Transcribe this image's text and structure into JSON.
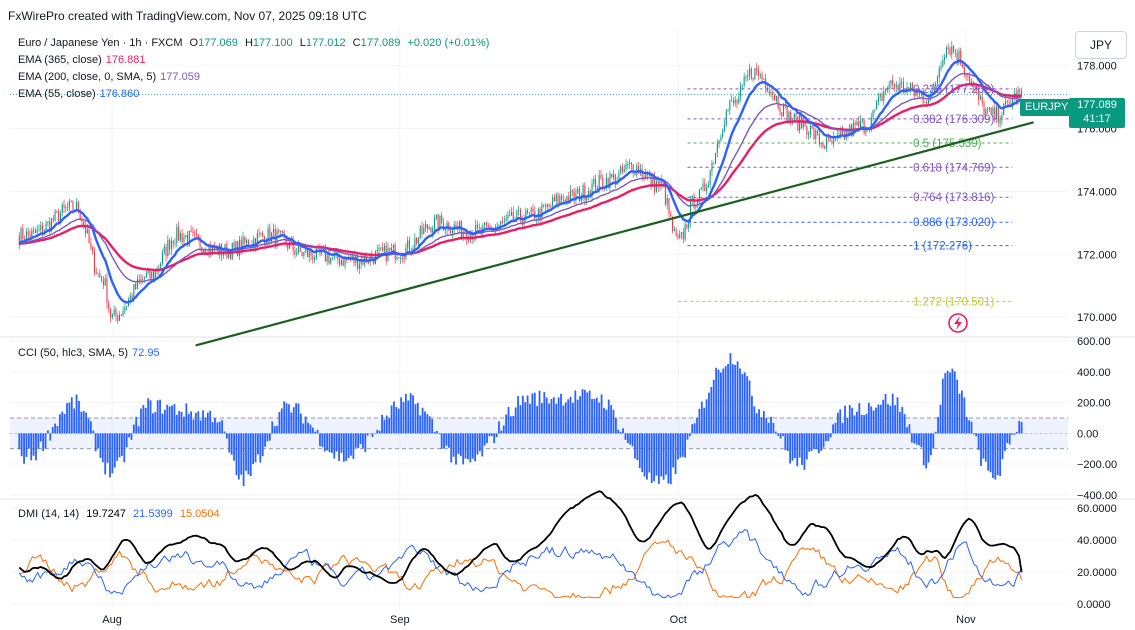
{
  "header": {
    "credit": "FxWirePro created with TradingView.com, Nov 07, 2025 09:18 UTC"
  },
  "currency_button": "JPY",
  "main_legend": {
    "symbol": "Euro / Japanese Yen · 1h · FXCM",
    "o_label": "O",
    "o_value": "177.069",
    "h_label": "H",
    "h_value": "177.100",
    "l_label": "L",
    "l_value": "177.012",
    "c_label": "C",
    "c_value": "177.089",
    "change": "+0.020 (+0.01%)",
    "ema365_label": "EMA (365, close)",
    "ema365_value": "176.881",
    "ema200_label": "EMA (200, close, 0, SMA, 5)",
    "ema200_value": "177.059",
    "ema55_label": "EMA (55, close)",
    "ema55_value": "176.860"
  },
  "price_tag": {
    "ticker": "EURJPY",
    "price": "177.089",
    "countdown": "41:17"
  },
  "cci_legend": {
    "label": "CCI (50, hlc3, SMA, 5)",
    "value": "72.95"
  },
  "dmi_legend": {
    "label": "DMI (14, 14)",
    "adx": "19.7247",
    "plus_di": "21.5399",
    "minus_di": "15.0504"
  },
  "colors": {
    "up": "#089981",
    "down": "#f23645",
    "ema55": "#2962ff",
    "ema200": "#7e57c2",
    "ema365": "#e91e63",
    "cci": "#2962ff",
    "adx": "#000000",
    "plus_di": "#2962ff",
    "minus_di": "#ff6d00",
    "trendline": "#1b5e20",
    "fib": "#7e57c2",
    "fib_mid": "#4caf50",
    "fib_ext": "#c0ca33",
    "fib_base": "#2962ff"
  },
  "chart_data": [
    {
      "type": "candlestick",
      "name": "price",
      "x_labels": [
        "Aug",
        "Sep",
        "Oct",
        "Nov"
      ],
      "ylim": [
        169.4,
        179.2
      ],
      "y_ticks": [
        "178.000",
        "176.000",
        "174.000",
        "172.000",
        "170.000"
      ],
      "y_tick_values": [
        178,
        176,
        174,
        172,
        170
      ],
      "key_points": [
        {
          "t": "Jul 23",
          "close": 172.6
        },
        {
          "t": "Jul 28",
          "close": 173.5
        },
        {
          "t": "Jul 31",
          "close": 171.2
        },
        {
          "t": "Aug 01",
          "close": 170.0
        },
        {
          "t": "Aug 05",
          "close": 171.3
        },
        {
          "t": "Aug 08",
          "close": 172.6
        },
        {
          "t": "Aug 13",
          "close": 172.1
        },
        {
          "t": "Aug 18",
          "close": 172.6
        },
        {
          "t": "Aug 22",
          "close": 172.0
        },
        {
          "t": "Aug 27",
          "close": 171.8
        },
        {
          "t": "Sep 01",
          "close": 172.1
        },
        {
          "t": "Sep 05",
          "close": 173.0
        },
        {
          "t": "Sep 09",
          "close": 172.7
        },
        {
          "t": "Sep 15",
          "close": 173.2
        },
        {
          "t": "Sep 19",
          "close": 173.8
        },
        {
          "t": "Sep 24",
          "close": 174.4
        },
        {
          "t": "Sep 26",
          "close": 174.8
        },
        {
          "t": "Sep 29",
          "close": 174.2
        },
        {
          "t": "Oct 01",
          "close": 172.4
        },
        {
          "t": "Oct 03",
          "close": 173.8
        },
        {
          "t": "Oct 07",
          "close": 176.8
        },
        {
          "t": "Oct 09",
          "close": 177.8
        },
        {
          "t": "Oct 14",
          "close": 176.2
        },
        {
          "t": "Oct 17",
          "close": 175.5
        },
        {
          "t": "Oct 21",
          "close": 176.1
        },
        {
          "t": "Oct 24",
          "close": 177.4
        },
        {
          "t": "Oct 28",
          "close": 177.0
        },
        {
          "t": "Oct 30",
          "close": 178.6
        },
        {
          "t": "Nov 04",
          "close": 176.4
        },
        {
          "t": "Nov 07",
          "close": 177.089
        }
      ],
      "last_price": 177.089,
      "fib_levels": [
        {
          "ratio": "0.236",
          "price": "177.262",
          "value": 177.262,
          "zone": "retr"
        },
        {
          "ratio": "0.382",
          "price": "176.309",
          "value": 176.309,
          "zone": "retr"
        },
        {
          "ratio": "0.5",
          "price": "175.539",
          "value": 175.539,
          "zone": "mid"
        },
        {
          "ratio": "0.618",
          "price": "174.769",
          "value": 174.769,
          "zone": "retr"
        },
        {
          "ratio": "0.764",
          "price": "173.816",
          "value": 173.816,
          "zone": "retr"
        },
        {
          "ratio": "0.886",
          "price": "173.020",
          "value": 173.02,
          "zone": "base"
        },
        {
          "ratio": "1",
          "price": "172.276",
          "value": 172.276,
          "zone": "base"
        },
        {
          "ratio": "1.272",
          "price": "170.501",
          "value": 170.501,
          "zone": "ext"
        }
      ],
      "trendline": [
        {
          "t": "Aug 10",
          "price": 169.1
        },
        {
          "t": "Nov 07",
          "price": 176.2
        }
      ]
    },
    {
      "type": "histogram",
      "name": "cci",
      "ylim": [
        -420,
        620
      ],
      "y_ticks": [
        "600.00",
        "400.00",
        "200.00",
        "0.00",
        "−200.00",
        "−400.00"
      ],
      "y_tick_values": [
        600,
        400,
        200,
        0,
        -200,
        -400
      ],
      "bands": [
        100,
        -100
      ],
      "key_points": [
        {
          "t": "Jul 23",
          "v": -150
        },
        {
          "t": "Jul 28",
          "v": 200
        },
        {
          "t": "Aug 01",
          "v": -250
        },
        {
          "t": "Aug 05",
          "v": 180
        },
        {
          "t": "Aug 12",
          "v": 120
        },
        {
          "t": "Aug 15",
          "v": -300
        },
        {
          "t": "Aug 20",
          "v": 170
        },
        {
          "t": "Aug 26",
          "v": -160
        },
        {
          "t": "Sep 02",
          "v": 210
        },
        {
          "t": "Sep 08",
          "v": -200
        },
        {
          "t": "Sep 15",
          "v": 230
        },
        {
          "t": "Sep 22",
          "v": 240
        },
        {
          "t": "Sep 29",
          "v": -330
        },
        {
          "t": "Oct 07",
          "v": 500
        },
        {
          "t": "Oct 10",
          "v": 150
        },
        {
          "t": "Oct 14",
          "v": -200
        },
        {
          "t": "Oct 20",
          "v": 160
        },
        {
          "t": "Oct 24",
          "v": 220
        },
        {
          "t": "Oct 28",
          "v": -180
        },
        {
          "t": "Oct 30",
          "v": 400
        },
        {
          "t": "Nov 04",
          "v": -280
        },
        {
          "t": "Nov 07",
          "v": 72.95
        }
      ]
    },
    {
      "type": "line",
      "name": "dmi",
      "ylim": [
        0,
        60
      ],
      "y_ticks": [
        "60.0000",
        "40.0000",
        "20.0000",
        "0.0000"
      ],
      "y_tick_values": [
        60,
        40,
        20,
        0
      ],
      "series_last": {
        "adx": 19.7247,
        "plus_di": 21.5399,
        "minus_di": 15.0504
      }
    }
  ]
}
